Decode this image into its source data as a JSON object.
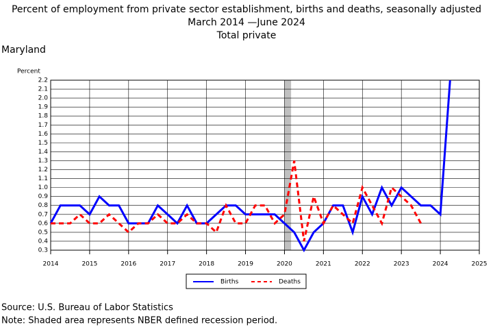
{
  "chart_data": {
    "type": "line",
    "title": "Percent of employment from private sector establishment, births and deaths, seasonally adjusted",
    "subtitle": "March 2014 —June 2024",
    "subtitle2": "Total private",
    "region": "Maryland",
    "ylabel": "Percent",
    "source": "Source: U.S. Bureau of Labor Statistics",
    "note": "Note: Shaded area represents NBER defined recession period.",
    "xlim": [
      2014,
      2025
    ],
    "xticks": [
      2014,
      2015,
      2016,
      2017,
      2018,
      2019,
      2020,
      2021,
      2022,
      2023,
      2024,
      2025
    ],
    "ylim": [
      0.3,
      2.2
    ],
    "yticks": [
      0.3,
      0.4,
      0.5,
      0.6,
      0.7,
      0.8,
      0.9,
      {
        "value": 1,
        "label": "1.0"
      },
      1.1,
      1.2,
      1.3,
      1.4,
      1.5,
      1.6,
      1.7,
      1.8,
      1.9,
      {
        "value": 2,
        "label": "2.0"
      },
      2.1,
      2.2
    ],
    "grid": true,
    "legend": "bottom",
    "shaded": {
      "color": "#c0c0c0",
      "xlim": [
        2020.0,
        2020.17
      ]
    },
    "series": [
      {
        "name": "Births",
        "color": "#0000ff",
        "dash": false,
        "x": [
          2014,
          2014.25,
          2014.5,
          2014.75,
          2015,
          2015.25,
          2015.5,
          2015.75,
          2016,
          2016.25,
          2016.5,
          2016.75,
          2017,
          2017.25,
          2017.5,
          2017.75,
          2018,
          2018.25,
          2018.5,
          2018.75,
          2019,
          2019.25,
          2019.5,
          2019.75,
          2020,
          2020.25,
          2020.5,
          2020.75,
          2021,
          2021.25,
          2021.5,
          2021.75,
          2022,
          2022.25,
          2022.5,
          2022.75,
          2023,
          2023.25,
          2023.5,
          2023.75,
          2024,
          2024.25
        ],
        "values": [
          0.6,
          0.8,
          0.8,
          0.8,
          0.7,
          0.9,
          0.8,
          0.8,
          0.6,
          0.6,
          0.6,
          0.8,
          0.7,
          0.6,
          0.8,
          0.6,
          0.6,
          0.7,
          0.8,
          0.8,
          0.7,
          0.7,
          0.7,
          0.7,
          0.6,
          0.5,
          0.3,
          0.5,
          0.6,
          0.8,
          0.8,
          0.5,
          0.9,
          0.7,
          1.0,
          0.8,
          1.0,
          0.9,
          0.8,
          0.8,
          0.7,
          2.2
        ]
      },
      {
        "name": "Deaths",
        "color": "#ff0000",
        "dash": true,
        "x": [
          2014,
          2014.25,
          2014.5,
          2014.75,
          2015,
          2015.25,
          2015.5,
          2015.75,
          2016,
          2016.25,
          2016.5,
          2016.75,
          2017,
          2017.25,
          2017.5,
          2017.75,
          2018,
          2018.25,
          2018.5,
          2018.75,
          2019,
          2019.25,
          2019.5,
          2019.75,
          2020,
          2020.25,
          2020.5,
          2020.75,
          2021,
          2021.25,
          2021.5,
          2021.75,
          2022,
          2022.25,
          2022.5,
          2022.75,
          2023,
          2023.25,
          2023.5
        ],
        "values": [
          0.6,
          0.6,
          0.6,
          0.7,
          0.6,
          0.6,
          0.7,
          0.6,
          0.5,
          0.6,
          0.6,
          0.7,
          0.6,
          0.6,
          0.7,
          0.6,
          0.6,
          0.5,
          0.8,
          0.6,
          0.6,
          0.8,
          0.8,
          0.6,
          0.7,
          1.3,
          0.4,
          0.9,
          0.6,
          0.8,
          0.7,
          0.6,
          1.0,
          0.8,
          0.6,
          1.0,
          0.9,
          0.8,
          0.6
        ]
      }
    ]
  }
}
